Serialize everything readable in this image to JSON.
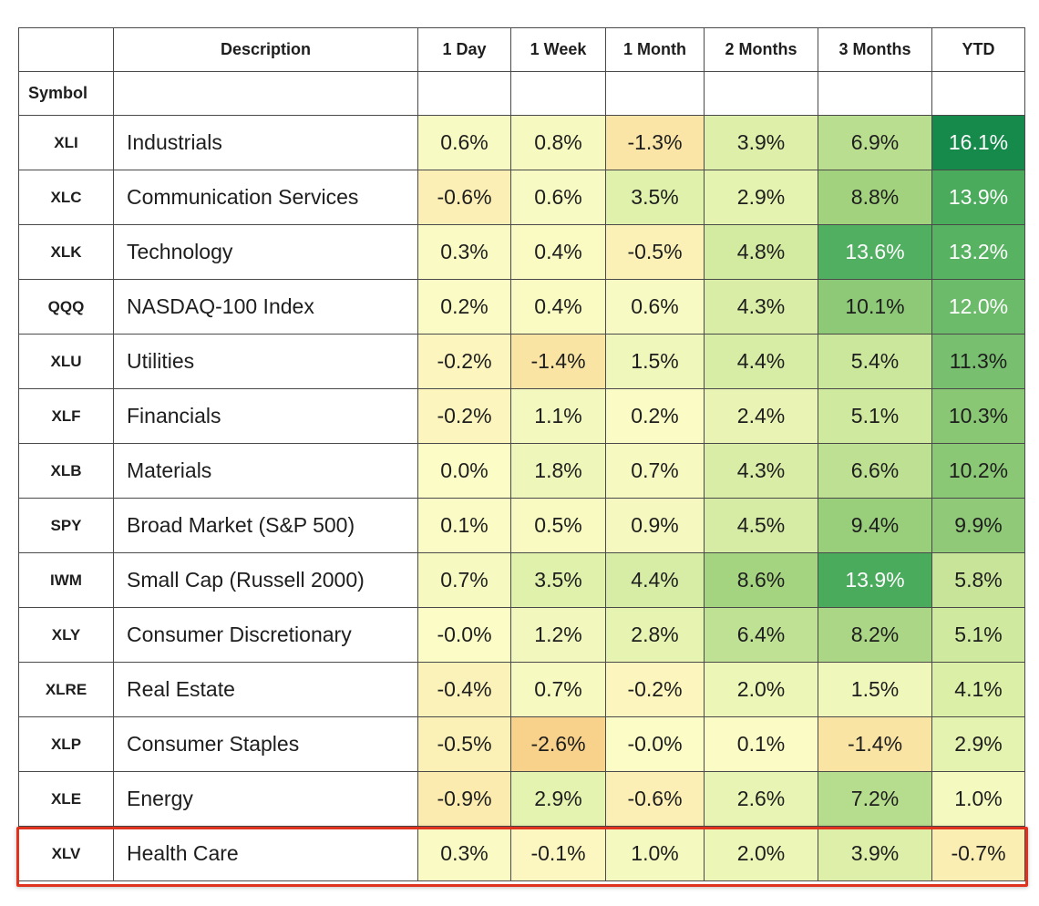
{
  "table": {
    "columns": [
      "Description",
      "1 Day",
      "1 Week",
      "1 Month",
      "2 Months",
      "3 Months",
      "YTD"
    ],
    "index_name": "Symbol",
    "rows": [
      {
        "symbol": "XLI",
        "description": "Industrials",
        "values": [
          "0.6%",
          "0.8%",
          "-1.3%",
          "3.9%",
          "6.9%",
          "16.1%"
        ]
      },
      {
        "symbol": "XLC",
        "description": "Communication Services",
        "values": [
          "-0.6%",
          "0.6%",
          "3.5%",
          "2.9%",
          "8.8%",
          "13.9%"
        ]
      },
      {
        "symbol": "XLK",
        "description": "Technology",
        "values": [
          "0.3%",
          "0.4%",
          "-0.5%",
          "4.8%",
          "13.6%",
          "13.2%"
        ]
      },
      {
        "symbol": "QQQ",
        "description": "NASDAQ-100 Index",
        "values": [
          "0.2%",
          "0.4%",
          "0.6%",
          "4.3%",
          "10.1%",
          "12.0%"
        ]
      },
      {
        "symbol": "XLU",
        "description": "Utilities",
        "values": [
          "-0.2%",
          "-1.4%",
          "1.5%",
          "4.4%",
          "5.4%",
          "11.3%"
        ]
      },
      {
        "symbol": "XLF",
        "description": "Financials",
        "values": [
          "-0.2%",
          "1.1%",
          "0.2%",
          "2.4%",
          "5.1%",
          "10.3%"
        ]
      },
      {
        "symbol": "XLB",
        "description": "Materials",
        "values": [
          "0.0%",
          "1.8%",
          "0.7%",
          "4.3%",
          "6.6%",
          "10.2%"
        ]
      },
      {
        "symbol": "SPY",
        "description": "Broad Market (S&P 500)",
        "values": [
          "0.1%",
          "0.5%",
          "0.9%",
          "4.5%",
          "9.4%",
          "9.9%"
        ]
      },
      {
        "symbol": "IWM",
        "description": "Small Cap (Russell 2000)",
        "values": [
          "0.7%",
          "3.5%",
          "4.4%",
          "8.6%",
          "13.9%",
          "5.8%"
        ]
      },
      {
        "symbol": "XLY",
        "description": "Consumer Discretionary",
        "values": [
          "-0.0%",
          "1.2%",
          "2.8%",
          "6.4%",
          "8.2%",
          "5.1%"
        ]
      },
      {
        "symbol": "XLRE",
        "description": "Real Estate",
        "values": [
          "-0.4%",
          "0.7%",
          "-0.2%",
          "2.0%",
          "1.5%",
          "4.1%"
        ]
      },
      {
        "symbol": "XLP",
        "description": "Consumer Staples",
        "values": [
          "-0.5%",
          "-2.6%",
          "-0.0%",
          "0.1%",
          "-1.4%",
          "2.9%"
        ]
      },
      {
        "symbol": "XLE",
        "description": "Energy",
        "values": [
          "-0.9%",
          "2.9%",
          "-0.6%",
          "2.6%",
          "7.2%",
          "1.0%"
        ]
      },
      {
        "symbol": "XLV",
        "description": "Health Care",
        "values": [
          "0.3%",
          "-0.1%",
          "1.0%",
          "2.0%",
          "3.9%",
          "-0.7%"
        ]
      }
    ]
  }
}
